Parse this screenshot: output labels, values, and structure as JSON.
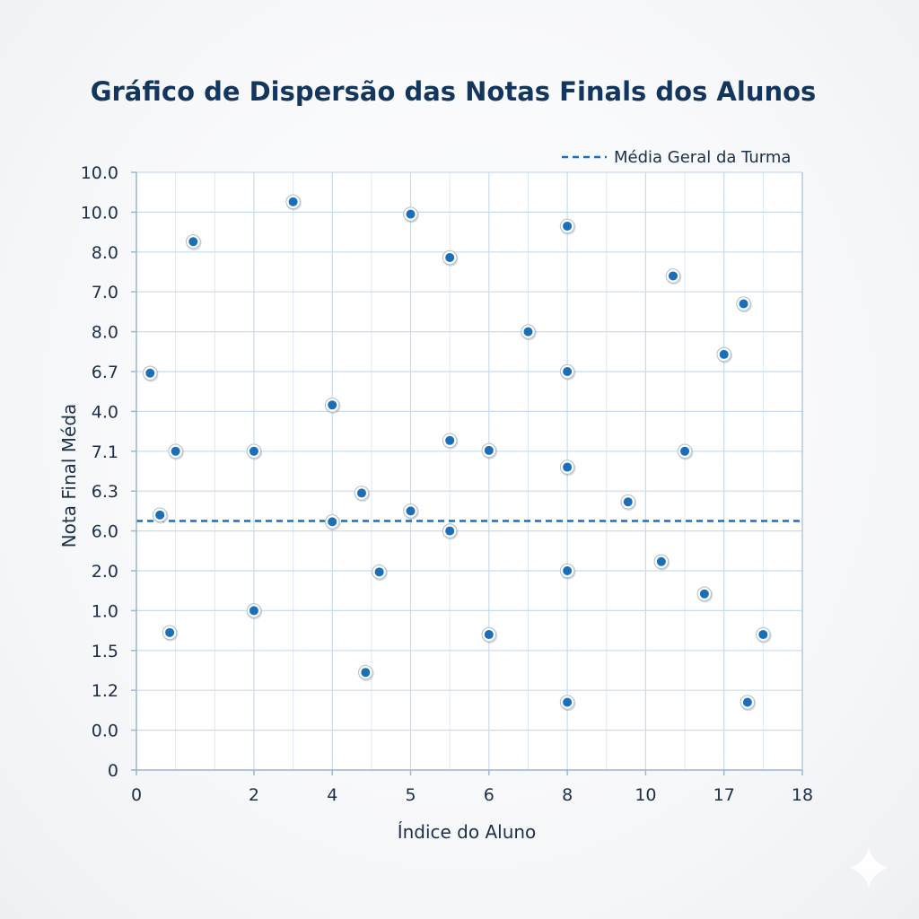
{
  "chart_data": {
    "type": "scatter",
    "title": "Gráfico de Dispersão das Notas Finals dos Alunos",
    "xlabel": "Índice do Aluno",
    "ylabel": "Nota Final Méda",
    "xlim": [
      0,
      17
    ],
    "ylim": [
      0,
      15
    ],
    "x_ticks": [
      {
        "value": 0,
        "label": "0"
      },
      {
        "value": 3,
        "label": "2"
      },
      {
        "value": 5,
        "label": "4"
      },
      {
        "value": 7,
        "label": "5"
      },
      {
        "value": 9,
        "label": "6"
      },
      {
        "value": 11,
        "label": "8"
      },
      {
        "value": 13,
        "label": "10"
      },
      {
        "value": 15,
        "label": "17"
      },
      {
        "value": 17,
        "label": "18"
      }
    ],
    "y_ticks": [
      {
        "value": 0,
        "label": "0"
      },
      {
        "value": 1,
        "label": "0.0"
      },
      {
        "value": 2,
        "label": "1.2"
      },
      {
        "value": 3,
        "label": "1.5"
      },
      {
        "value": 4,
        "label": "1.0"
      },
      {
        "value": 5,
        "label": "2.0"
      },
      {
        "value": 6,
        "label": "6.0"
      },
      {
        "value": 7,
        "label": "6.3"
      },
      {
        "value": 8,
        "label": "7.1"
      },
      {
        "value": 9,
        "label": "4.0"
      },
      {
        "value": 10,
        "label": "6.7"
      },
      {
        "value": 11,
        "label": "8.0"
      },
      {
        "value": 12,
        "label": "7.0"
      },
      {
        "value": 13,
        "label": "8.0"
      },
      {
        "value": 14,
        "label": "10.0"
      },
      {
        "value": 15,
        "label": "10.0"
      }
    ],
    "grid": true,
    "legend_position": "top-right",
    "reference_line": {
      "label": "Média Geral da Turma",
      "y": 6.25,
      "style": "dashed",
      "color": "#1a6fb8"
    },
    "series": [
      {
        "color": "#1a6fb8",
        "points": [
          {
            "x": 0.35,
            "y": 9.96
          },
          {
            "x": 0.6,
            "y": 6.4
          },
          {
            "x": 0.85,
            "y": 3.45
          },
          {
            "x": 1.0,
            "y": 8.0
          },
          {
            "x": 1.45,
            "y": 13.26
          },
          {
            "x": 3.0,
            "y": 8.0
          },
          {
            "x": 3.0,
            "y": 4.0
          },
          {
            "x": 4.0,
            "y": 14.26
          },
          {
            "x": 5.0,
            "y": 9.16
          },
          {
            "x": 5.0,
            "y": 6.23
          },
          {
            "x": 5.75,
            "y": 6.95
          },
          {
            "x": 5.85,
            "y": 2.45
          },
          {
            "x": 6.2,
            "y": 4.97
          },
          {
            "x": 7.0,
            "y": 13.95
          },
          {
            "x": 7.0,
            "y": 6.5
          },
          {
            "x": 8.0,
            "y": 12.86
          },
          {
            "x": 8.0,
            "y": 8.27
          },
          {
            "x": 8.0,
            "y": 6.0
          },
          {
            "x": 9.0,
            "y": 8.02
          },
          {
            "x": 9.0,
            "y": 3.4
          },
          {
            "x": 10.0,
            "y": 11.0
          },
          {
            "x": 11.0,
            "y": 13.65
          },
          {
            "x": 11.0,
            "y": 10.0
          },
          {
            "x": 11.0,
            "y": 7.6
          },
          {
            "x": 11.0,
            "y": 5.0
          },
          {
            "x": 11.0,
            "y": 1.7
          },
          {
            "x": 12.55,
            "y": 6.73
          },
          {
            "x": 13.4,
            "y": 5.23
          },
          {
            "x": 13.7,
            "y": 12.4
          },
          {
            "x": 14.0,
            "y": 8.0
          },
          {
            "x": 14.5,
            "y": 4.42
          },
          {
            "x": 15.0,
            "y": 10.43
          },
          {
            "x": 15.5,
            "y": 11.7
          },
          {
            "x": 15.6,
            "y": 1.7
          },
          {
            "x": 16.0,
            "y": 3.4
          }
        ]
      }
    ]
  }
}
